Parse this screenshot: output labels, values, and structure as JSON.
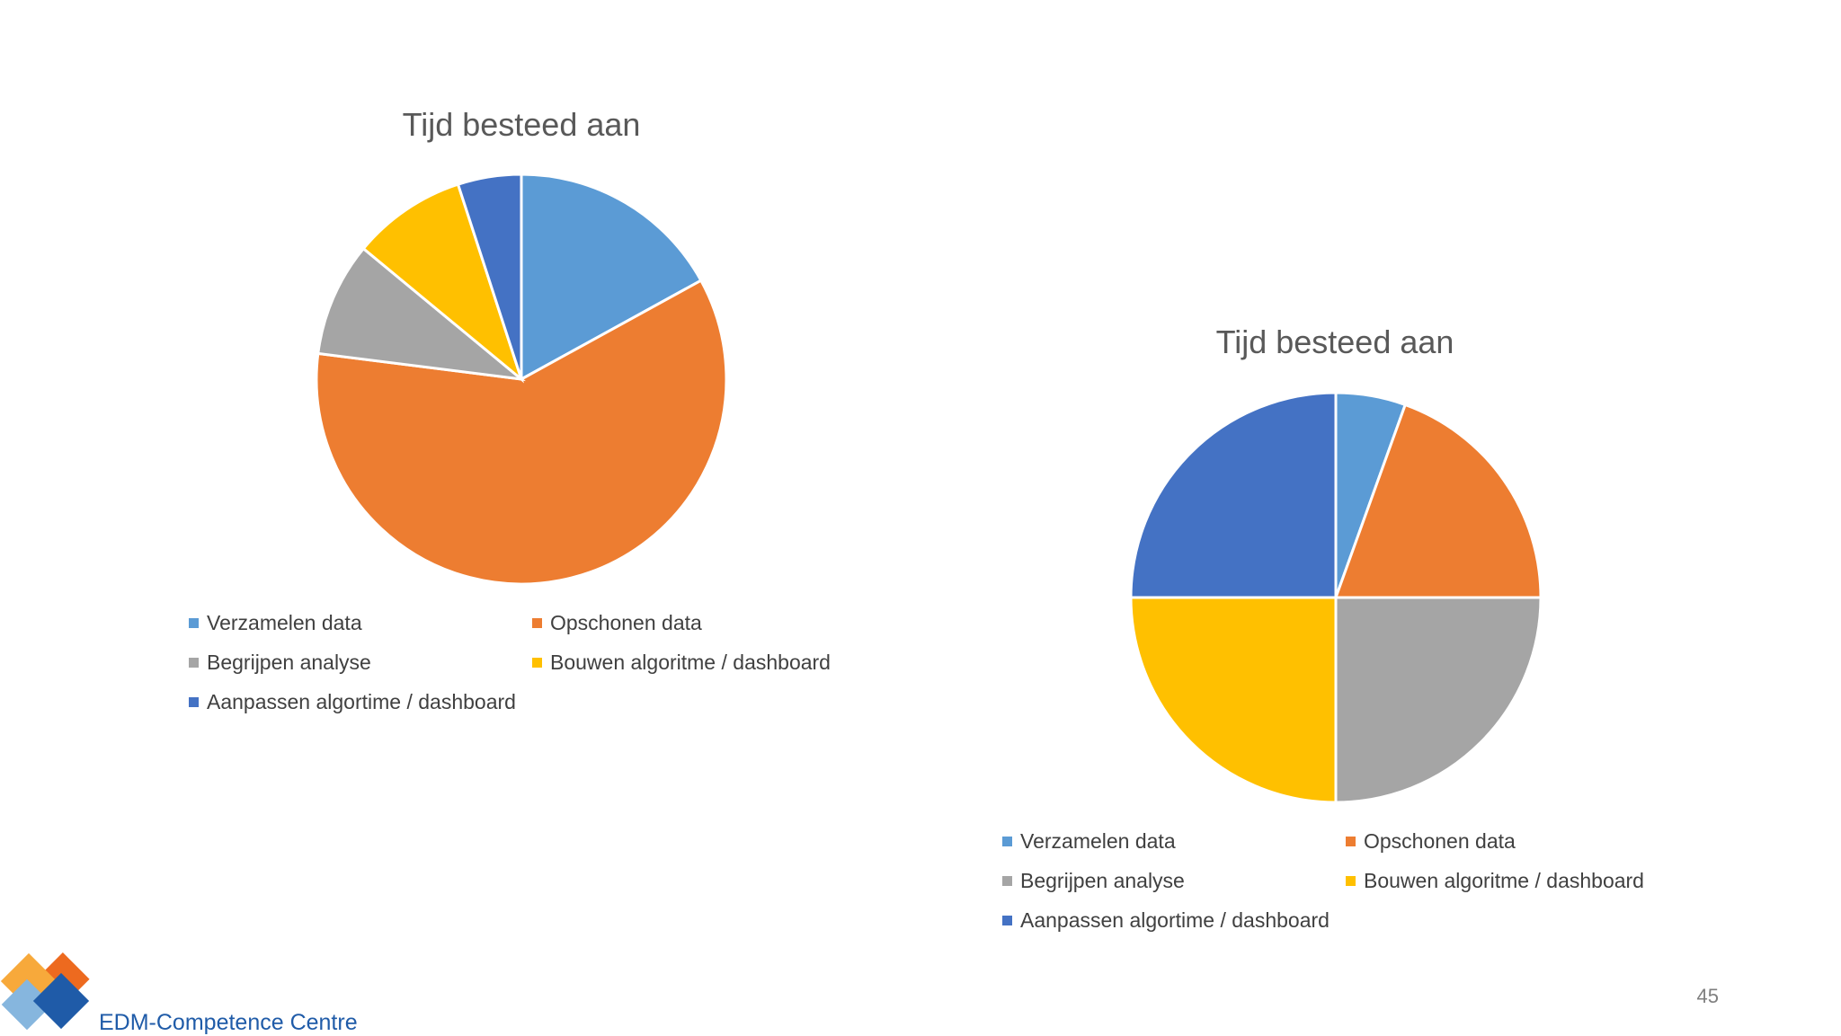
{
  "colors": {
    "Verzamelen data": "#5B9BD5",
    "Opschonen data": "#ED7D31",
    "Begrijpen analyse": "#A5A5A5",
    "Bouwen algoritme / dashboard": "#FFC000",
    "Aanpassen algortime / dashboard": "#4472C4"
  },
  "chart_data": [
    {
      "type": "pie",
      "title": "Tijd besteed aan",
      "categories": [
        "Verzamelen data",
        "Opschonen data",
        "Begrijpen analyse",
        "Bouwen algoritme / dashboard",
        "Aanpassen algortime / dashboard"
      ],
      "values": [
        17,
        60,
        9,
        9,
        5
      ],
      "legend_position": "bottom"
    },
    {
      "type": "pie",
      "title": "Tijd besteed aan",
      "categories": [
        "Verzamelen data",
        "Opschonen data",
        "Begrijpen analyse",
        "Bouwen algoritme / dashboard",
        "Aanpassen algortime / dashboard"
      ],
      "values": [
        5.5,
        19.5,
        25,
        25,
        25
      ],
      "legend_position": "bottom"
    }
  ],
  "footer": {
    "logo_text": "EDM-Competence Centre",
    "page_number": "45"
  }
}
